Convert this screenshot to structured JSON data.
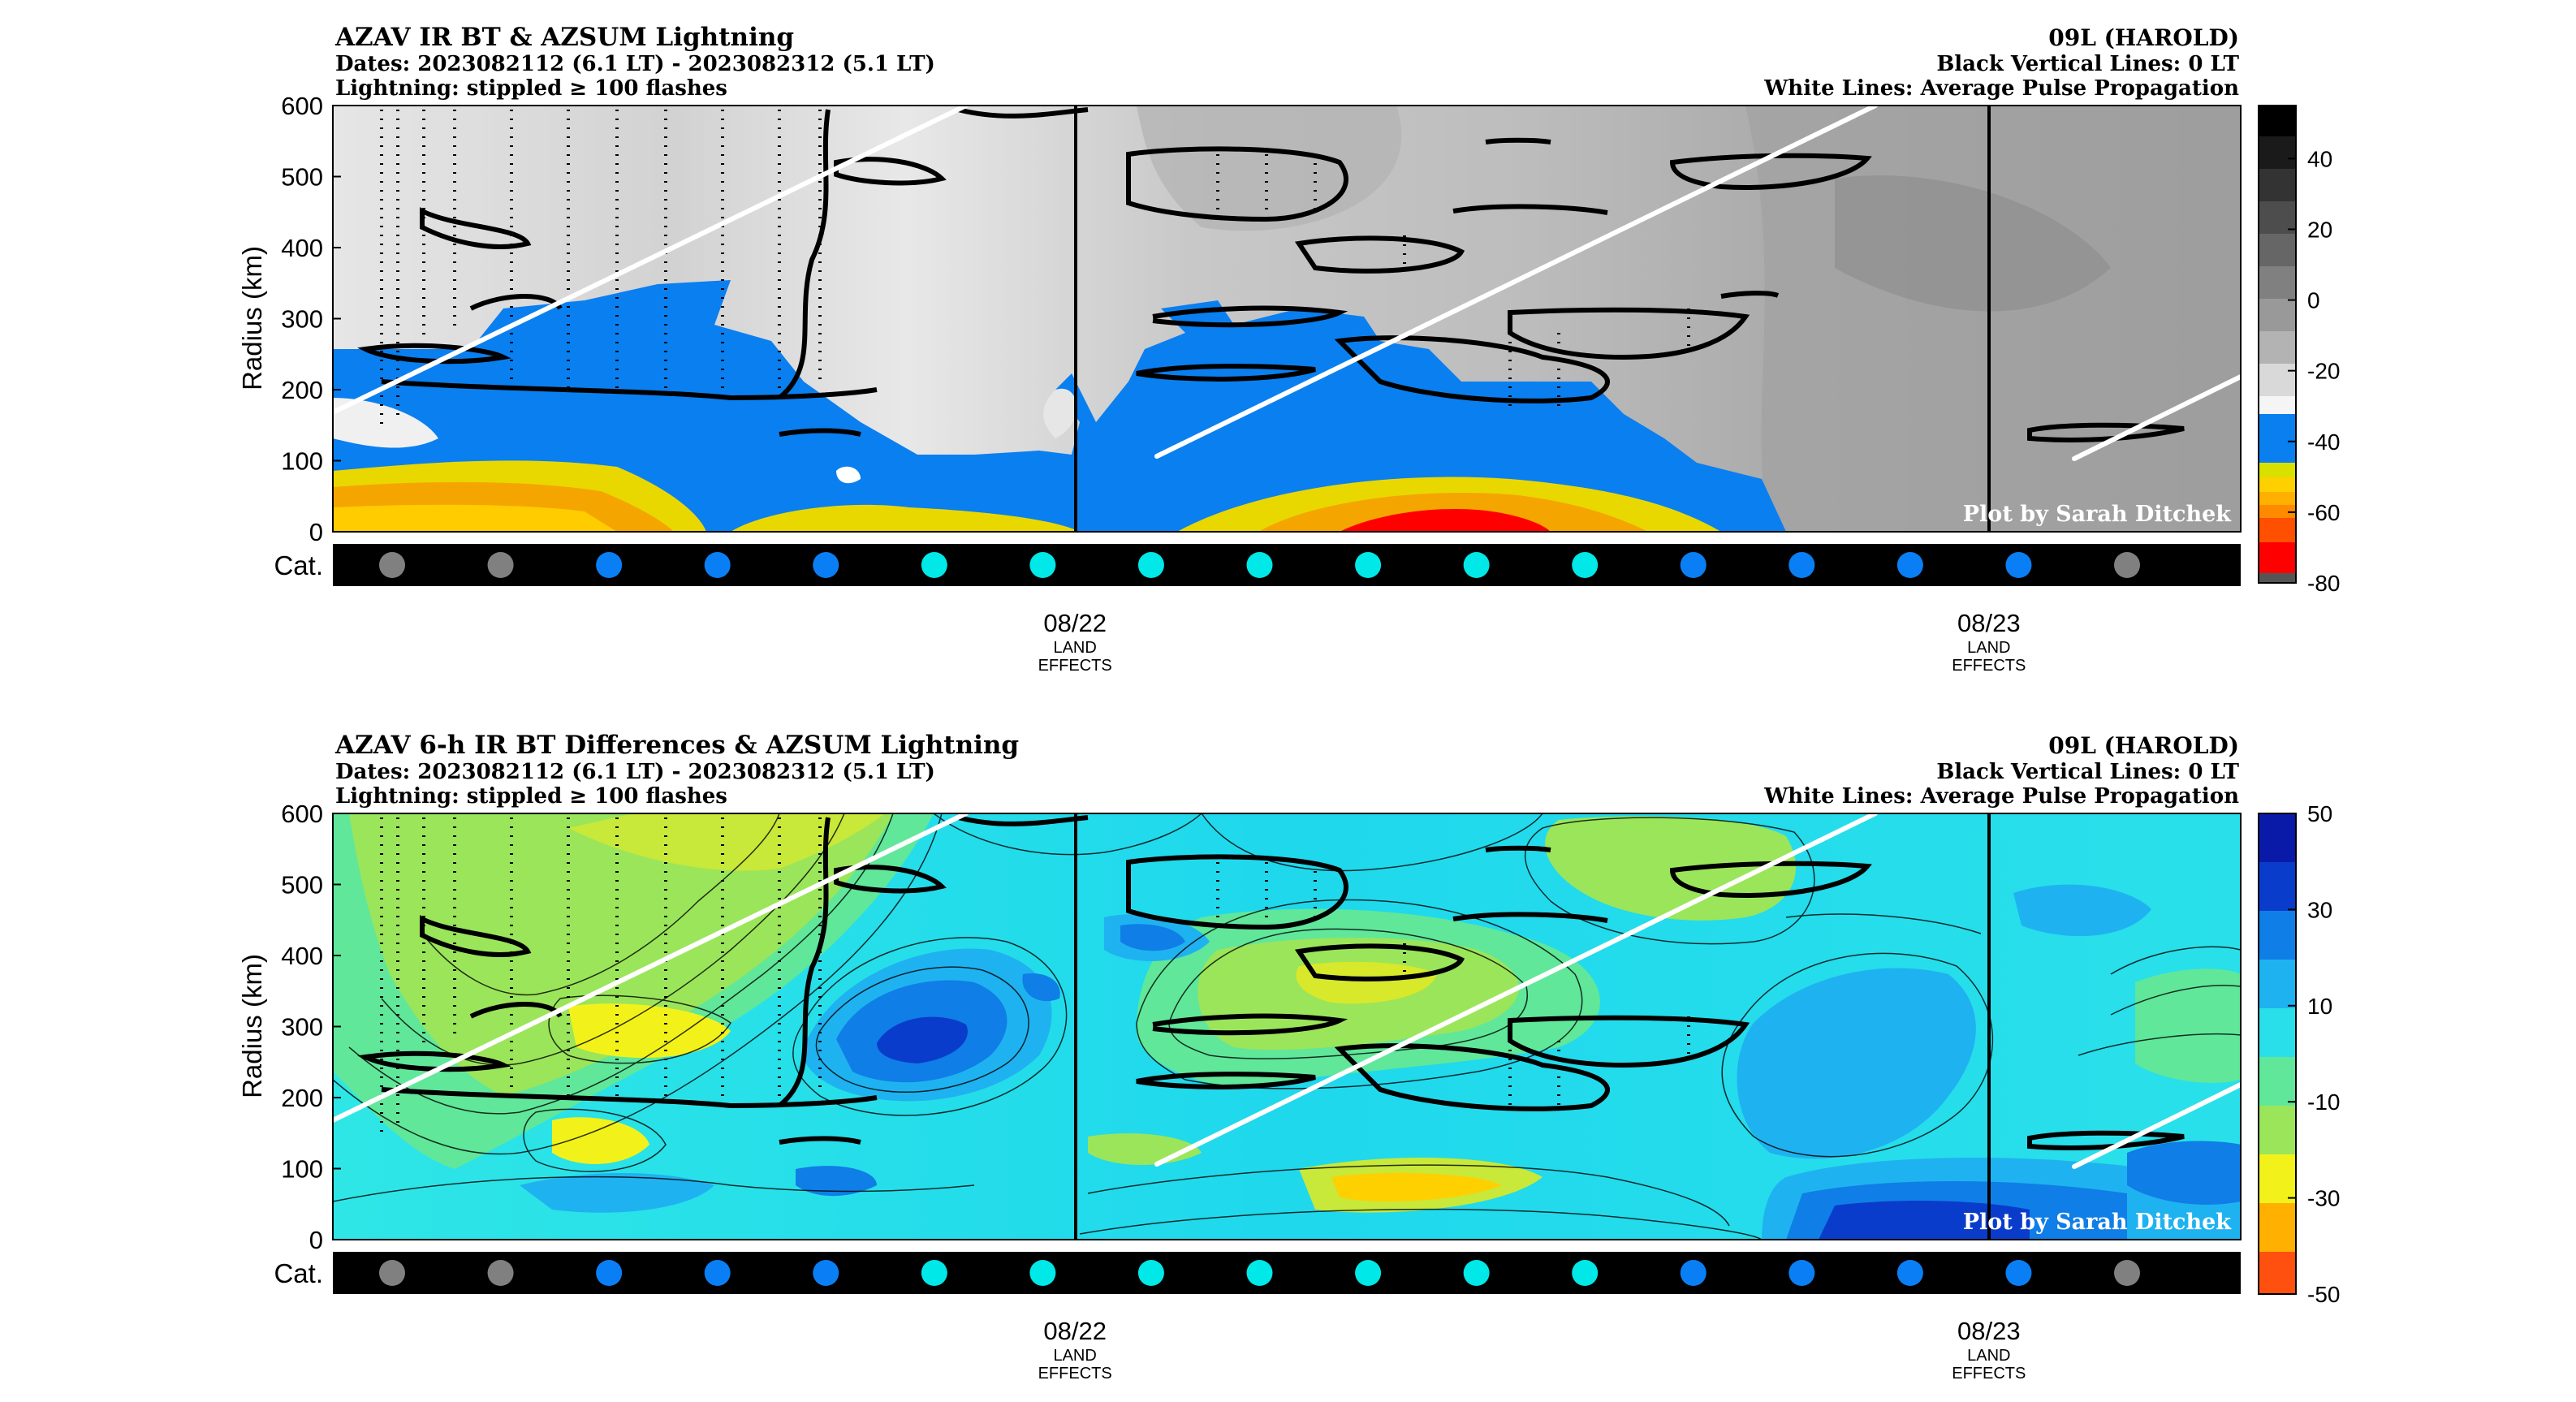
{
  "chart_data": [
    {
      "type": "heatmap",
      "title": "AZAV IR BT & AZSUM Lightning",
      "dates": "Dates: 2023082112 (6.1 LT) - 2023082312 (5.1 LT)",
      "lightning_note": "Lightning: stippled ≥ 100 flashes",
      "storm": "09L (HAROLD)",
      "black_lines_note": "Black Vertical Lines: 0 LT",
      "white_lines_note": "White Lines: Average Pulse Propagation",
      "credit": "Plot by Sarah Ditchek",
      "ylabel": "Radius (km)",
      "ylim": [
        0,
        600
      ],
      "yticks": [
        "0",
        "100",
        "200",
        "300",
        "400",
        "500",
        "600"
      ],
      "colorbar_ticks": [
        "40",
        "20",
        "0",
        "-20",
        "-40",
        "-60",
        "-80"
      ],
      "colorbar_range": [
        -80,
        55
      ],
      "cat_label": "Cat.",
      "x_ticks": [
        {
          "label": "08/22",
          "sub1": "LAND",
          "sub2": "EFFECTS",
          "frac": 0.389
        },
        {
          "label": "08/23",
          "sub1": "LAND",
          "sub2": "EFFECTS",
          "frac": 0.868
        }
      ],
      "category_dots": [
        "#808080",
        "#808080",
        "#0a7ff5",
        "#0a7ff5",
        "#0a7ff5",
        "#00e8e8",
        "#00e8e8",
        "#00e8e8",
        "#00e8e8",
        "#00e8e8",
        "#00e8e8",
        "#00e8e8",
        "#0a7ff5",
        "#0a7ff5",
        "#0a7ff5",
        "#0a7ff5",
        "#808080"
      ]
    },
    {
      "type": "heatmap",
      "title": "AZAV 6-h IR BT Differences & AZSUM Lightning",
      "dates": "Dates: 2023082112 (6.1 LT) - 2023082312 (5.1 LT)",
      "lightning_note": "Lightning: stippled ≥ 100 flashes",
      "storm": "09L (HAROLD)",
      "black_lines_note": "Black Vertical Lines: 0 LT",
      "white_lines_note": "White Lines: Average Pulse Propagation",
      "credit": "Plot by Sarah Ditchek",
      "ylabel": "Radius (km)",
      "ylim": [
        0,
        600
      ],
      "yticks": [
        "0",
        "100",
        "200",
        "300",
        "400",
        "500",
        "600"
      ],
      "colorbar_ticks": [
        "50",
        "30",
        "10",
        "-10",
        "-30",
        "-50"
      ],
      "colorbar_range": [
        -50,
        50
      ],
      "cat_label": "Cat.",
      "x_ticks": [
        {
          "label": "08/22",
          "sub1": "LAND",
          "sub2": "EFFECTS",
          "frac": 0.389
        },
        {
          "label": "08/23",
          "sub1": "LAND",
          "sub2": "EFFECTS",
          "frac": 0.868
        }
      ],
      "category_dots": [
        "#808080",
        "#808080",
        "#0a7ff5",
        "#0a7ff5",
        "#0a7ff5",
        "#00e8e8",
        "#00e8e8",
        "#00e8e8",
        "#00e8e8",
        "#00e8e8",
        "#00e8e8",
        "#00e8e8",
        "#0a7ff5",
        "#0a7ff5",
        "#0a7ff5",
        "#0a7ff5",
        "#808080"
      ]
    }
  ]
}
